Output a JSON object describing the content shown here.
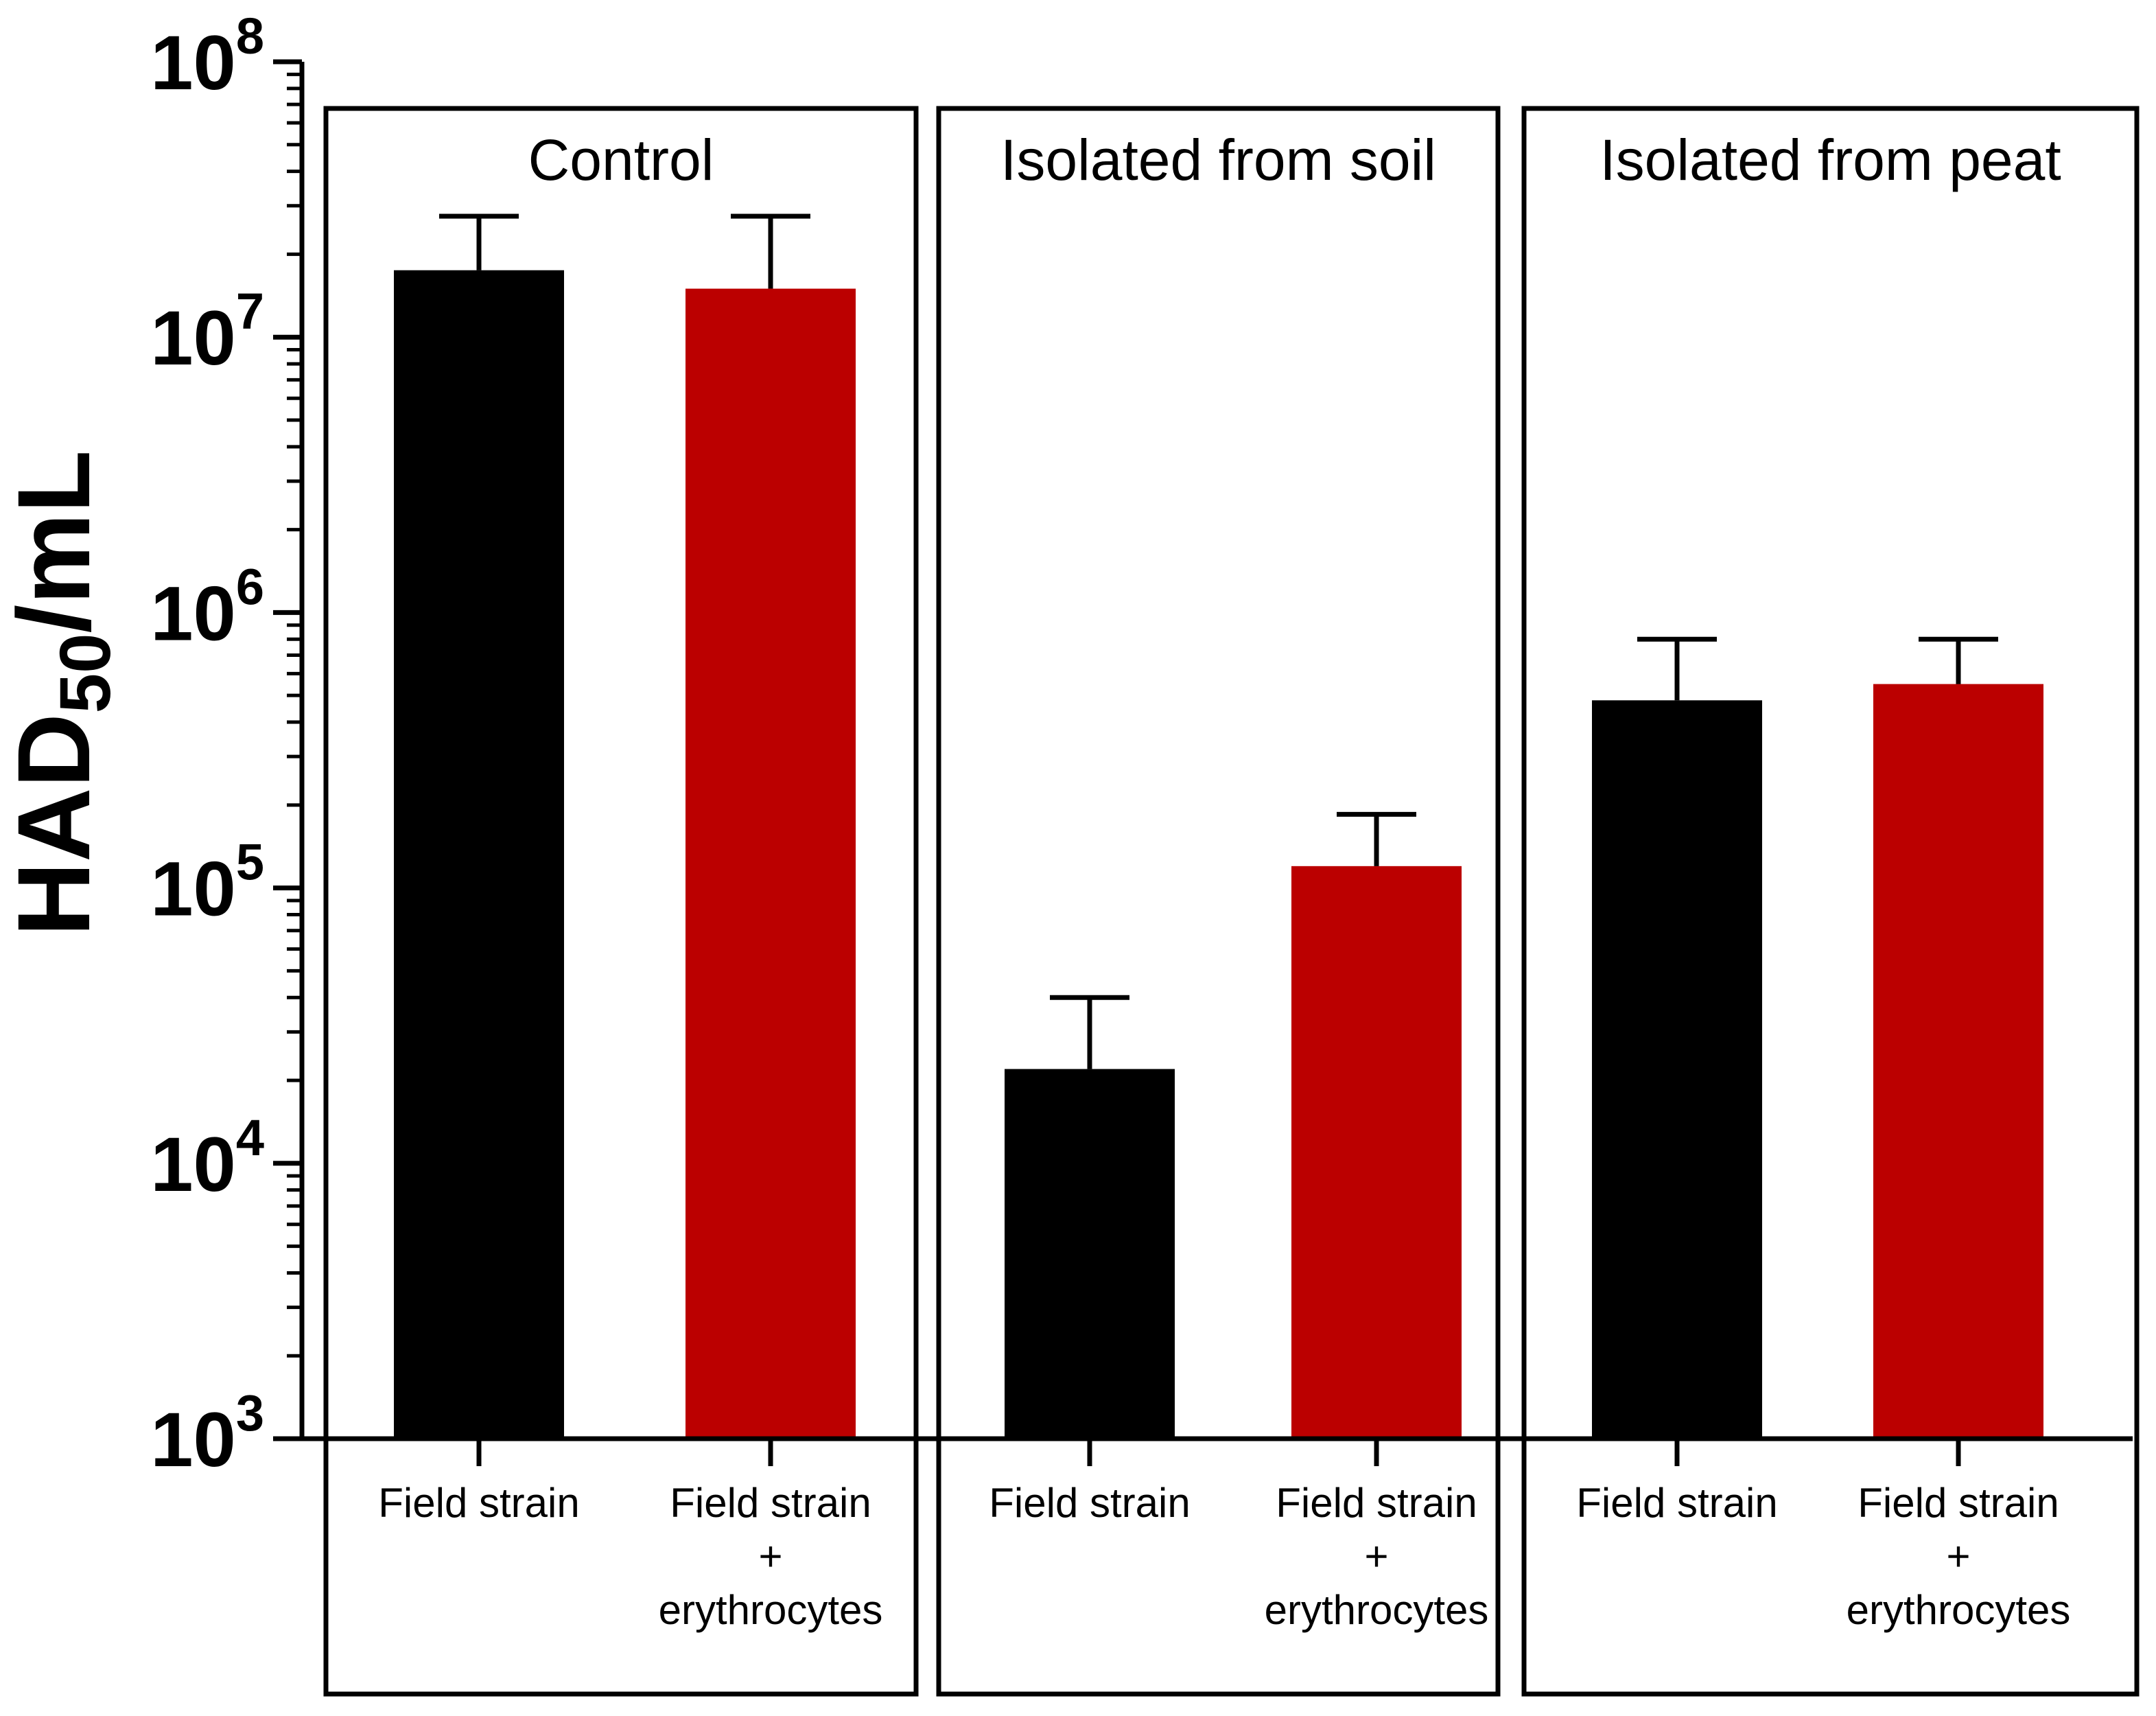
{
  "chart_data": {
    "type": "bar",
    "ylabel": "HAD",
    "ylabel_subscript": "50",
    "ylabel_suffix": "/mL",
    "yscale": "log",
    "ylim": [
      1000,
      100000000
    ],
    "ytick_base": "10",
    "ytick_exponents": [
      "3",
      "4",
      "5",
      "6",
      "7",
      "8"
    ],
    "colors": {
      "field_strain": "#000000",
      "field_strain_erythrocytes": "#bb0000"
    },
    "groups": [
      {
        "title": "Control",
        "bars": [
          {
            "label_lines": [
              "Field strain"
            ],
            "series": "field_strain",
            "value": 17500000,
            "error_upper": 27500000
          },
          {
            "label_lines": [
              "Field strain",
              "+",
              "erythrocytes"
            ],
            "series": "field_strain_erythrocytes",
            "value": 15000000,
            "error_upper": 27500000
          }
        ]
      },
      {
        "title": "Isolated from soil",
        "bars": [
          {
            "label_lines": [
              "Field strain"
            ],
            "series": "field_strain",
            "value": 22000,
            "error_upper": 40000
          },
          {
            "label_lines": [
              "Field strain",
              "+",
              "erythrocytes"
            ],
            "series": "field_strain_erythrocytes",
            "value": 120000,
            "error_upper": 185000
          }
        ]
      },
      {
        "title": "Isolated from peat",
        "bars": [
          {
            "label_lines": [
              "Field strain"
            ],
            "series": "field_strain",
            "value": 480000,
            "error_upper": 800000
          },
          {
            "label_lines": [
              "Field strain",
              "+",
              "erythrocytes"
            ],
            "series": "field_strain_erythrocytes",
            "value": 550000,
            "error_upper": 800000
          }
        ]
      }
    ]
  }
}
